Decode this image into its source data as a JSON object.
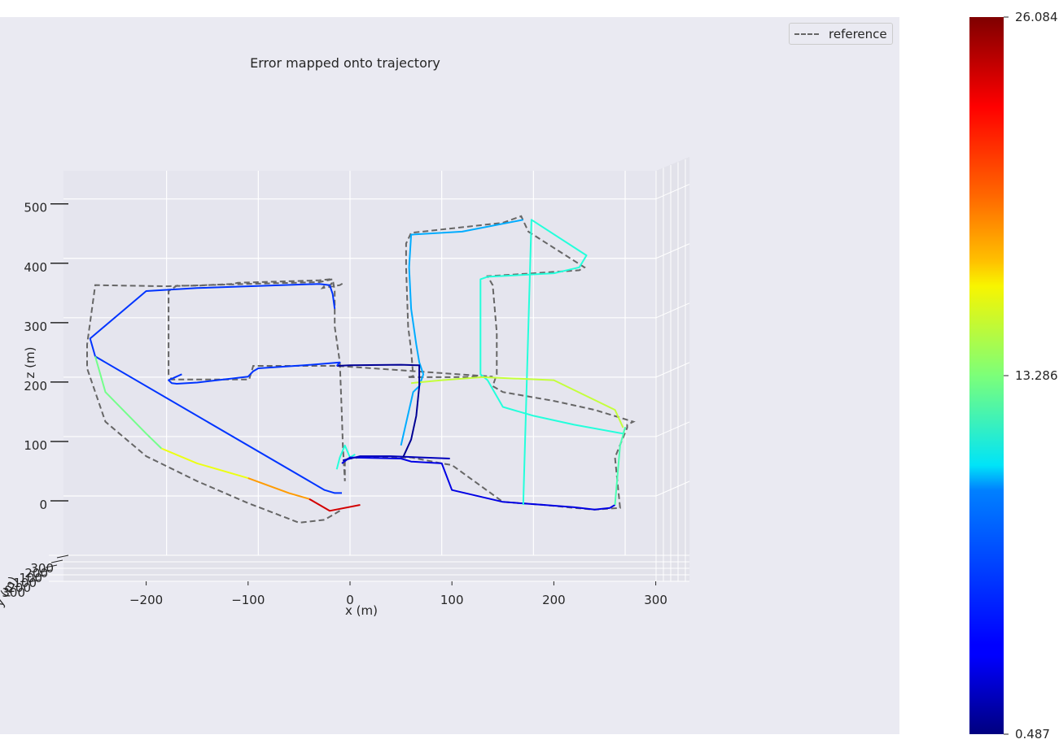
{
  "chart_data": {
    "type": "line",
    "title": "Error mapped onto trajectory",
    "xlabel": "x (m)",
    "ylabel": "z (m)",
    "zlabel": "y (m)",
    "x_ticks": [
      "−200",
      "−100",
      "0",
      "100",
      "200",
      "300"
    ],
    "z_ticks": [
      "0",
      "100",
      "200",
      "300",
      "400",
      "500"
    ],
    "y_ticks": [
      "300",
      "200",
      "100",
      "100",
      "200",
      "300"
    ],
    "legend": {
      "position": "top-right",
      "entries": [
        "reference"
      ]
    },
    "colorbar": {
      "colormap": "jet",
      "min": 0.487,
      "max": 26.084,
      "tick_labels": [
        "26.084",
        "13.286",
        "0.487"
      ]
    },
    "reference": {
      "x": [
        -10,
        -25,
        -50,
        -100,
        -150,
        -200,
        -240,
        -258,
        -258,
        -250,
        -180,
        -100,
        -30,
        -17,
        -15,
        -15,
        -10,
        -8,
        -7,
        -5,
        -5,
        10,
        60,
        90,
        100,
        150,
        190,
        220,
        240,
        265,
        260,
        272,
        272,
        278,
        240,
        200,
        150,
        140,
        144,
        144,
        140,
        135,
        180,
        225,
        230,
        175,
        168,
        150,
        60,
        55,
        55,
        57,
        60,
        62,
        60,
        56,
        60,
        100,
        140,
        -13,
        -95,
        -99,
        -150,
        -175,
        -178,
        -178,
        -170,
        -150,
        -140,
        -115,
        -110,
        -90,
        -30,
        -20,
        -18,
        -20,
        -25,
        -27,
        -10,
        -5
      ],
      "z": [
        -10,
        -25,
        -30,
        3,
        40,
        82,
        140,
        230,
        270,
        370,
        368,
        372,
        375,
        380,
        360,
        300,
        240,
        150,
        100,
        40,
        77,
        80,
        80,
        70,
        67,
        5,
        0,
        -5,
        -8,
        -5,
        80,
        130,
        135,
        140,
        160,
        175,
        190,
        200,
        220,
        290,
        370,
        385,
        390,
        395,
        400,
        460,
        486,
        475,
        458,
        440,
        400,
        300,
        260,
        217,
        216,
        215,
        215,
        215,
        216,
        234,
        234,
        211,
        211,
        211,
        220,
        360,
        369,
        369,
        370,
        372,
        374,
        375,
        378,
        380,
        372,
        370,
        369,
        365,
        370,
        375
      ]
    },
    "estimate_segments": [
      {
        "error": 5,
        "x": [
          -8,
          -15,
          -25,
          -250,
          -255,
          -200,
          -150,
          -30,
          -20,
          -17,
          -15
        ]
      },
      {
        "error": 11,
        "x": [
          -13,
          -10,
          -5,
          0,
          5
        ]
      },
      {
        "error": 13,
        "x": [
          -250,
          -240,
          -200,
          -185
        ]
      },
      {
        "error": 16,
        "x": [
          -185,
          -150,
          -100
        ]
      },
      {
        "error": 19,
        "x": [
          -100,
          -60,
          -40
        ]
      },
      {
        "error": 24,
        "x": [
          -40,
          -20,
          10
        ]
      },
      {
        "error": 3,
        "x": [
          -8,
          0,
          50,
          60,
          90,
          100,
          150,
          190,
          220,
          240,
          255,
          260
        ]
      },
      {
        "error": 2,
        "x": [
          -7,
          10,
          40,
          70,
          98
        ]
      },
      {
        "error": 12,
        "x": [
          260,
          265,
          270,
          268
        ]
      },
      {
        "error": 11,
        "x": [
          268,
          220,
          180,
          150,
          135,
          128,
          128,
          135,
          200,
          225,
          232,
          178,
          170
        ]
      },
      {
        "error": 8,
        "x": [
          170,
          110,
          60,
          58,
          60,
          65,
          68,
          70,
          72,
          70,
          68,
          62,
          50
        ]
      },
      {
        "error": 15,
        "x": [
          60,
          90,
          130,
          200,
          260,
          268
        ]
      },
      {
        "error": 1,
        "x": [
          -13,
          0,
          50,
          68,
          68,
          65,
          60,
          52
        ]
      },
      {
        "error": 5,
        "x": [
          -13,
          -10,
          -45,
          -90,
          -95,
          -100,
          -150,
          -170,
          -175,
          -178,
          -165
        ]
      }
    ],
    "grid": true
  }
}
